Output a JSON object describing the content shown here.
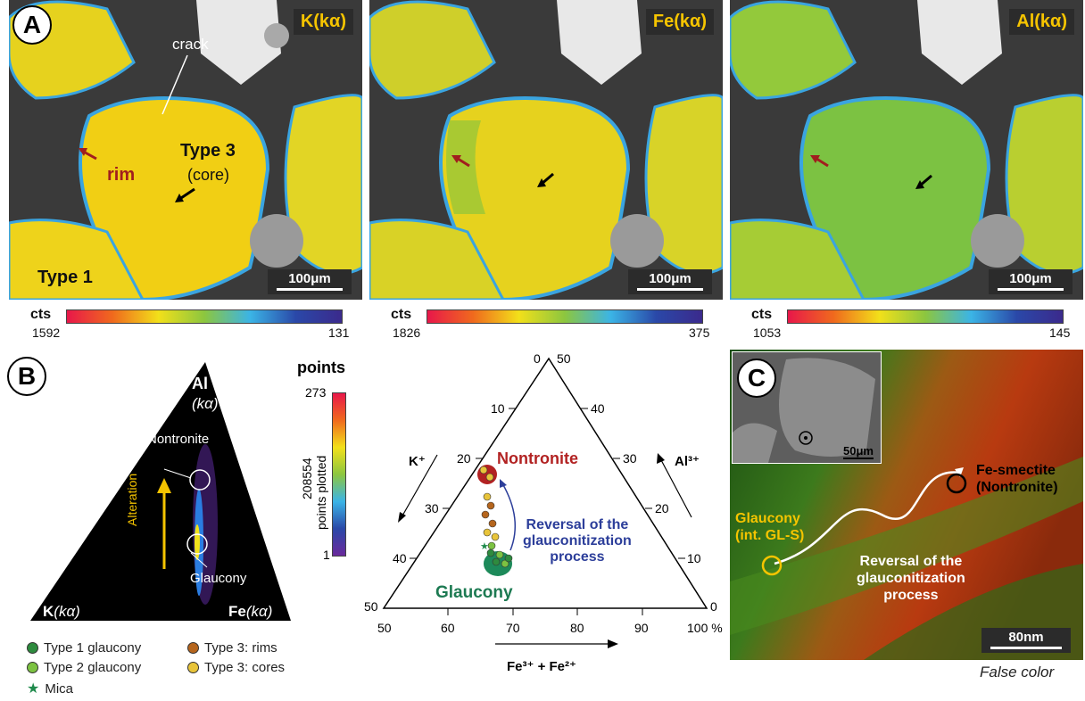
{
  "panel_a": {
    "label": "A",
    "maps": [
      {
        "title": "K(kα)",
        "scale": "100μm",
        "cts_label": "cts",
        "cts_max": "1592",
        "cts_min": "131"
      },
      {
        "title": "Fe(kα)",
        "scale": "100μm",
        "cts_label": "cts",
        "cts_max": "1826",
        "cts_min": "375"
      },
      {
        "title": "Al(kα)",
        "scale": "100μm",
        "cts_label": "cts",
        "cts_max": "1053",
        "cts_min": "145"
      }
    ],
    "annotations": {
      "crack": "crack",
      "rim": "rim",
      "type3": "Type 3",
      "core": "(core)",
      "type1": "Type 1"
    }
  },
  "panel_b": {
    "label": "B",
    "apex_top": "Al",
    "apex_top_sub": "(kα)",
    "apex_left": "K",
    "apex_left_sub": "(kα)",
    "apex_right": "Fe",
    "apex_right_sub": "(kα)",
    "nontronite": "Nontronite",
    "glaucony": "Glaucony",
    "alteration": "Alteration",
    "points_title": "points",
    "points_max": "273",
    "points_mid": "208554",
    "points_axis": "points plotted",
    "points_min": "1",
    "legend": [
      {
        "label": "Type 1 glaucony",
        "color": "#2e8b3e",
        "shape": "dot"
      },
      {
        "label": "Type 3: rims",
        "color": "#b5651d",
        "shape": "dot"
      },
      {
        "label": "Type 2 glaucony",
        "color": "#7cc242",
        "shape": "dot"
      },
      {
        "label": "Type 3: cores",
        "color": "#e8c43a",
        "shape": "dot"
      },
      {
        "label": "Mica",
        "color": "#1f8a4c",
        "shape": "star"
      }
    ]
  },
  "ternary": {
    "left_ticks": [
      "0",
      "10",
      "20",
      "30",
      "40",
      "50"
    ],
    "right_ticks": [
      "50",
      "40",
      "30",
      "20",
      "10",
      "0"
    ],
    "bottom_ticks": [
      "50",
      "60",
      "70",
      "80",
      "90",
      "100 %"
    ],
    "k_label": "K⁺",
    "al_label": "Al³⁺",
    "fe_label": "Fe³⁺ + Fe²⁺",
    "nontronite": "Nontronite",
    "glaucony": "Glaucony",
    "reversal_line1": "Reversal of the",
    "reversal_line2": "glauconitization",
    "reversal_line3": "process"
  },
  "panel_c": {
    "label": "C",
    "inset_scale": "50μm",
    "fe_smectite_line1": "Fe-smectite",
    "fe_smectite_line2": "(Nontronite)",
    "glaucony_line1": "Glaucony",
    "glaucony_line2": "(int. GL-S)",
    "reversal_line1": "Reversal of the",
    "reversal_line2": "glauconitization",
    "reversal_line3": "process",
    "scale": "80nm",
    "false_color": "False color"
  }
}
